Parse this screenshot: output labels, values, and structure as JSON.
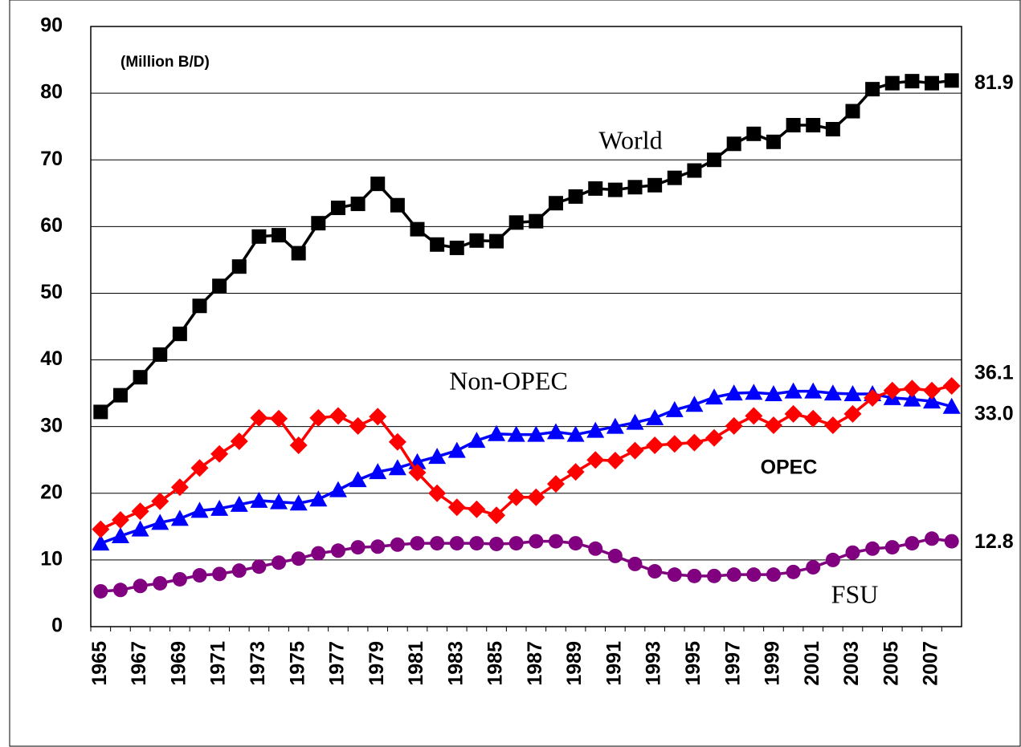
{
  "chart_data": {
    "type": "line",
    "annotation": "(Million B/D)",
    "categories": [
      "1965",
      null,
      "1967",
      null,
      "1969",
      null,
      "1971",
      null,
      "1973",
      null,
      "1975",
      null,
      "1977",
      null,
      "1979",
      null,
      "1981",
      null,
      "1983",
      null,
      "1985",
      null,
      "1987",
      null,
      "1989",
      null,
      "1991",
      null,
      "1993",
      null,
      "1995",
      null,
      "1997",
      null,
      "1999",
      null,
      "2001",
      null,
      "2003",
      null,
      "2005",
      null,
      "2007",
      null
    ],
    "series": [
      {
        "name": "World",
        "color": "#000000",
        "marker": "square",
        "values": [
          32.2,
          34.7,
          37.4,
          40.8,
          43.9,
          48.1,
          51.1,
          54.0,
          58.5,
          58.7,
          56.0,
          60.5,
          62.8,
          63.4,
          66.4,
          63.2,
          59.6,
          57.3,
          56.8,
          57.9,
          57.8,
          60.6,
          60.8,
          63.5,
          64.5,
          65.7,
          65.5,
          65.9,
          66.2,
          67.3,
          68.4,
          70.0,
          72.4,
          73.9,
          72.7,
          75.2,
          75.2,
          74.6,
          77.3,
          80.6,
          81.5,
          81.8,
          81.5,
          81.9
        ]
      },
      {
        "name": "Non-OPEC",
        "color": "#0000ff",
        "marker": "triangle",
        "values": [
          12.5,
          13.6,
          14.6,
          15.6,
          16.2,
          17.4,
          17.7,
          18.3,
          18.9,
          18.7,
          18.5,
          19.1,
          20.5,
          22.0,
          23.2,
          23.8,
          24.7,
          25.5,
          26.4,
          27.9,
          28.9,
          28.8,
          28.8,
          29.2,
          28.8,
          29.4,
          30.0,
          30.6,
          31.3,
          32.5,
          33.3,
          34.4,
          35.0,
          35.1,
          34.9,
          35.3,
          35.3,
          35.0,
          34.9,
          34.9,
          34.3,
          34.1,
          33.8,
          33.0
        ],
        "value_labels": [
          null,
          null,
          null,
          null,
          null,
          null,
          null,
          null,
          null,
          null,
          null,
          null,
          null,
          null,
          null,
          null,
          null,
          null,
          null,
          null,
          null,
          null,
          null,
          null,
          null,
          null,
          null,
          null,
          null,
          null,
          null,
          null,
          null,
          null,
          null,
          null,
          null,
          null,
          null,
          null,
          null,
          null,
          null,
          "33.0"
        ]
      },
      {
        "name": "OPEC",
        "color": "#ff0000",
        "marker": "diamond",
        "values": [
          14.6,
          16.0,
          17.3,
          18.8,
          20.9,
          23.8,
          25.9,
          27.8,
          31.3,
          31.2,
          27.2,
          31.3,
          31.6,
          30.1,
          31.5,
          27.7,
          23.1,
          20.0,
          17.9,
          17.6,
          16.7,
          19.4,
          19.4,
          21.4,
          23.2,
          25.0,
          24.9,
          26.4,
          27.2,
          27.4,
          27.6,
          28.3,
          30.1,
          31.6,
          30.2,
          31.9,
          31.2,
          30.2,
          31.9,
          34.3,
          35.4,
          35.7,
          35.4,
          36.1
        ]
      },
      {
        "name": "FSU",
        "color": "#800080",
        "marker": "circle",
        "values": [
          5.3,
          5.5,
          6.1,
          6.5,
          7.1,
          7.7,
          7.9,
          8.4,
          9.0,
          9.6,
          10.2,
          11.0,
          11.4,
          11.9,
          12.0,
          12.3,
          12.5,
          12.5,
          12.5,
          12.5,
          12.4,
          12.5,
          12.8,
          12.8,
          12.5,
          11.7,
          10.6,
          9.4,
          8.3,
          7.8,
          7.6,
          7.6,
          7.8,
          7.8,
          7.8,
          8.2,
          8.9,
          10.0,
          11.1,
          11.7,
          11.9,
          12.5,
          13.2,
          12.8
        ]
      }
    ],
    "ylim": [
      0,
      90
    ],
    "yticks": [
      0,
      10,
      20,
      30,
      40,
      50,
      60,
      70,
      80,
      90
    ],
    "grid": true
  }
}
